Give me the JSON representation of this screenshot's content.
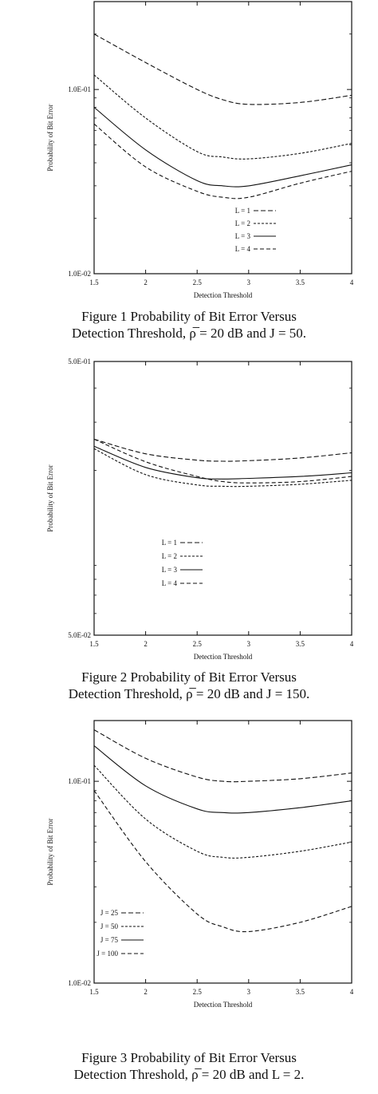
{
  "charts": [
    {
      "id": "fig1",
      "caption_line1": "Figure 1  Probability of Bit Error Versus",
      "caption_line2": "Detection Threshold, ρ̅ = 20 dB and J = 50."
    },
    {
      "id": "fig2",
      "caption_line1": "Figure 2  Probability of Bit Error Versus",
      "caption_line2": "Detection Threshold, ρ̅ = 20 dB and J = 150."
    },
    {
      "id": "fig3",
      "caption_line1": "Figure 3  Probability of Bit Error Versus",
      "caption_line2": "Detection Threshold, ρ̅ = 20 dB and L = 2."
    }
  ],
  "chart_data": [
    {
      "type": "line",
      "title": "",
      "xlabel": "Detection Threshold",
      "ylabel": "Probability of Bit Error",
      "xlim": [
        1.5,
        4
      ],
      "ylim": [
        0.01,
        0.3
      ],
      "log_y": true,
      "x_ticks": [
        "1.5",
        "2",
        "2.5",
        "3",
        "3.5",
        "4"
      ],
      "y_ticks": [
        {
          "label": "1.0E-02",
          "value": 0.01
        },
        {
          "label": "1.0E-01",
          "value": 0.1
        }
      ],
      "legend_position": "bottom-right",
      "series": [
        {
          "name": "L = 1",
          "dash": "6 3",
          "x": [
            1.5,
            2,
            2.5,
            2.75,
            3,
            3.5,
            4
          ],
          "y": [
            0.2,
            0.14,
            0.1,
            0.088,
            0.083,
            0.085,
            0.093
          ]
        },
        {
          "name": "L = 2",
          "dash": "3 2",
          "x": [
            1.5,
            2,
            2.5,
            2.75,
            3,
            3.5,
            4
          ],
          "y": [
            0.12,
            0.07,
            0.046,
            0.043,
            0.042,
            0.045,
            0.051
          ]
        },
        {
          "name": "L = 3",
          "dash": "",
          "x": [
            1.5,
            2,
            2.5,
            2.75,
            3,
            3.5,
            4
          ],
          "y": [
            0.08,
            0.047,
            0.032,
            0.03,
            0.03,
            0.034,
            0.039
          ]
        },
        {
          "name": "L = 4",
          "dash": "5 3",
          "x": [
            1.5,
            2,
            2.5,
            2.75,
            3,
            3.5,
            4
          ],
          "y": [
            0.065,
            0.038,
            0.028,
            0.026,
            0.026,
            0.031,
            0.036
          ]
        }
      ]
    },
    {
      "type": "line",
      "title": "",
      "xlabel": "Detection Threshold",
      "ylabel": "Probability of Bit Error",
      "xlim": [
        1.5,
        4
      ],
      "ylim": [
        0.05,
        0.5
      ],
      "log_y": true,
      "x_ticks": [
        "1.5",
        "2",
        "2.5",
        "3",
        "3.5",
        "4"
      ],
      "y_ticks": [
        {
          "label": "5.0E-02",
          "value": 0.05
        },
        {
          "label": "5.0E-01",
          "value": 0.5
        }
      ],
      "legend_position": "bottom-left",
      "series": [
        {
          "name": "L = 1",
          "dash": "6 3",
          "x": [
            1.5,
            2,
            2.5,
            2.75,
            3,
            3.5,
            4
          ],
          "y": [
            0.26,
            0.23,
            0.218,
            0.216,
            0.217,
            0.222,
            0.232
          ]
        },
        {
          "name": "L = 2",
          "dash": "3 2",
          "x": [
            1.5,
            2,
            2.5,
            2.75,
            3,
            3.5,
            4
          ],
          "y": [
            0.24,
            0.193,
            0.177,
            0.175,
            0.175,
            0.178,
            0.184
          ]
        },
        {
          "name": "L = 3",
          "dash": "",
          "x": [
            1.5,
            2,
            2.5,
            2.75,
            3,
            3.5,
            4
          ],
          "y": [
            0.245,
            0.205,
            0.188,
            0.186,
            0.187,
            0.19,
            0.196
          ]
        },
        {
          "name": "L = 4",
          "dash": "5 3",
          "x": [
            1.5,
            2,
            2.5,
            2.75,
            3,
            3.5,
            4
          ],
          "y": [
            0.26,
            0.215,
            0.19,
            0.182,
            0.18,
            0.182,
            0.19
          ]
        }
      ]
    },
    {
      "type": "line",
      "title": "",
      "xlabel": "Detection Threshold",
      "ylabel": "Probability of Bit Error",
      "xlim": [
        1.5,
        4
      ],
      "ylim": [
        0.01,
        0.2
      ],
      "log_y": true,
      "x_ticks": [
        "1.5",
        "2",
        "2.5",
        "3",
        "3.5",
        "4"
      ],
      "y_ticks": [
        {
          "label": "1.0E-02",
          "value": 0.01
        },
        {
          "label": "1.0E-01",
          "value": 0.1
        }
      ],
      "legend_position": "bottom-left",
      "series": [
        {
          "name": "J = 25",
          "dash": "6 3",
          "x": [
            1.5,
            2,
            2.5,
            2.75,
            3,
            3.5,
            4
          ],
          "y": [
            0.18,
            0.13,
            0.105,
            0.1,
            0.1,
            0.103,
            0.11
          ]
        },
        {
          "name": "J = 50",
          "dash": "3 2",
          "x": [
            1.5,
            2,
            2.5,
            2.75,
            3,
            3.5,
            4
          ],
          "y": [
            0.12,
            0.065,
            0.045,
            0.042,
            0.042,
            0.045,
            0.05
          ]
        },
        {
          "name": "J = 75",
          "dash": "",
          "x": [
            1.5,
            2,
            2.5,
            2.75,
            3,
            3.5,
            4
          ],
          "y": [
            0.15,
            0.095,
            0.073,
            0.07,
            0.07,
            0.074,
            0.08
          ]
        },
        {
          "name": "J = 100",
          "dash": "5 3",
          "x": [
            1.5,
            2,
            2.5,
            2.75,
            3,
            3.5,
            4
          ],
          "y": [
            0.09,
            0.04,
            0.022,
            0.019,
            0.018,
            0.02,
            0.024
          ]
        }
      ]
    }
  ]
}
